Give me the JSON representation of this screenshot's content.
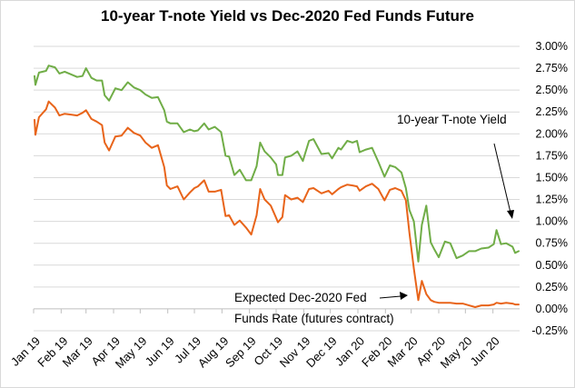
{
  "chart_data": {
    "type": "line",
    "title": "10-year T-note Yield vs Dec-2020 Fed Funds Future",
    "x_tick_labels": [
      "Jan 19",
      "Feb 19",
      "Mar 19",
      "Apr 19",
      "May 19",
      "Jun 19",
      "Jul 19",
      "Aug 19",
      "Sep 19",
      "Oct 19",
      "Nov 19",
      "Dec 19",
      "Jan 20",
      "Feb 20",
      "Mar 20",
      "Apr 20",
      "May 20",
      "Jun 20"
    ],
    "y_tick_labels": [
      "-0.25%",
      "0.00%",
      "0.25%",
      "0.50%",
      "0.75%",
      "1.00%",
      "1.25%",
      "1.50%",
      "1.75%",
      "2.00%",
      "2.25%",
      "2.50%",
      "2.75%",
      "3.00%"
    ],
    "ylim": [
      -0.25,
      3.0
    ],
    "grid": "horizontal",
    "series": [
      {
        "name": "10-year T-note Yield",
        "color": "#70ad47",
        "points": [
          [
            "2019-01-02",
            2.66
          ],
          [
            "2019-01-03",
            2.56
          ],
          [
            "2019-01-07",
            2.7
          ],
          [
            "2019-01-15",
            2.72
          ],
          [
            "2019-01-18",
            2.78
          ],
          [
            "2019-01-25",
            2.76
          ],
          [
            "2019-01-30",
            2.69
          ],
          [
            "2019-02-05",
            2.71
          ],
          [
            "2019-02-12",
            2.68
          ],
          [
            "2019-02-19",
            2.65
          ],
          [
            "2019-02-25",
            2.66
          ],
          [
            "2019-03-01",
            2.75
          ],
          [
            "2019-03-07",
            2.64
          ],
          [
            "2019-03-13",
            2.61
          ],
          [
            "2019-03-19",
            2.61
          ],
          [
            "2019-03-22",
            2.44
          ],
          [
            "2019-03-27",
            2.38
          ],
          [
            "2019-04-03",
            2.52
          ],
          [
            "2019-04-10",
            2.5
          ],
          [
            "2019-04-17",
            2.59
          ],
          [
            "2019-04-24",
            2.53
          ],
          [
            "2019-05-01",
            2.5
          ],
          [
            "2019-05-07",
            2.45
          ],
          [
            "2019-05-14",
            2.41
          ],
          [
            "2019-05-21",
            2.42
          ],
          [
            "2019-05-28",
            2.27
          ],
          [
            "2019-05-31",
            2.14
          ],
          [
            "2019-06-04",
            2.12
          ],
          [
            "2019-06-12",
            2.12
          ],
          [
            "2019-06-19",
            2.02
          ],
          [
            "2019-06-26",
            2.05
          ],
          [
            "2019-07-01",
            2.03
          ],
          [
            "2019-07-05",
            2.04
          ],
          [
            "2019-07-12",
            2.12
          ],
          [
            "2019-07-17",
            2.05
          ],
          [
            "2019-07-24",
            2.08
          ],
          [
            "2019-07-31",
            2.02
          ],
          [
            "2019-08-05",
            1.75
          ],
          [
            "2019-08-09",
            1.74
          ],
          [
            "2019-08-15",
            1.53
          ],
          [
            "2019-08-21",
            1.59
          ],
          [
            "2019-08-28",
            1.47
          ],
          [
            "2019-09-03",
            1.47
          ],
          [
            "2019-09-09",
            1.63
          ],
          [
            "2019-09-13",
            1.9
          ],
          [
            "2019-09-18",
            1.8
          ],
          [
            "2019-09-25",
            1.73
          ],
          [
            "2019-10-01",
            1.65
          ],
          [
            "2019-10-03",
            1.53
          ],
          [
            "2019-10-08",
            1.53
          ],
          [
            "2019-10-11",
            1.73
          ],
          [
            "2019-10-18",
            1.75
          ],
          [
            "2019-10-25",
            1.8
          ],
          [
            "2019-10-31",
            1.69
          ],
          [
            "2019-11-07",
            1.92
          ],
          [
            "2019-11-12",
            1.94
          ],
          [
            "2019-11-21",
            1.77
          ],
          [
            "2019-11-29",
            1.78
          ],
          [
            "2019-12-03",
            1.72
          ],
          [
            "2019-12-10",
            1.84
          ],
          [
            "2019-12-13",
            1.82
          ],
          [
            "2019-12-20",
            1.92
          ],
          [
            "2019-12-26",
            1.9
          ],
          [
            "2019-12-31",
            1.92
          ],
          [
            "2020-01-03",
            1.79
          ],
          [
            "2020-01-10",
            1.82
          ],
          [
            "2020-01-17",
            1.84
          ],
          [
            "2020-01-24",
            1.68
          ],
          [
            "2020-01-31",
            1.51
          ],
          [
            "2020-02-06",
            1.64
          ],
          [
            "2020-02-12",
            1.62
          ],
          [
            "2020-02-19",
            1.56
          ],
          [
            "2020-02-24",
            1.38
          ],
          [
            "2020-02-28",
            1.13
          ],
          [
            "2020-03-04",
            1.0
          ],
          [
            "2020-03-09",
            0.54
          ],
          [
            "2020-03-13",
            0.96
          ],
          [
            "2020-03-18",
            1.18
          ],
          [
            "2020-03-23",
            0.76
          ],
          [
            "2020-03-27",
            0.68
          ],
          [
            "2020-04-01",
            0.59
          ],
          [
            "2020-04-08",
            0.77
          ],
          [
            "2020-04-14",
            0.75
          ],
          [
            "2020-04-21",
            0.58
          ],
          [
            "2020-04-28",
            0.61
          ],
          [
            "2020-05-05",
            0.66
          ],
          [
            "2020-05-12",
            0.66
          ],
          [
            "2020-05-19",
            0.69
          ],
          [
            "2020-05-27",
            0.7
          ],
          [
            "2020-06-02",
            0.74
          ],
          [
            "2020-06-05",
            0.9
          ],
          [
            "2020-06-10",
            0.74
          ],
          [
            "2020-06-16",
            0.75
          ],
          [
            "2020-06-23",
            0.71
          ],
          [
            "2020-06-26",
            0.64
          ],
          [
            "2020-06-30",
            0.66
          ]
        ]
      },
      {
        "name": "Expected Dec-2020 Fed Funds Rate (futures contract)",
        "color": "#e8641a",
        "points": [
          [
            "2019-01-02",
            2.16
          ],
          [
            "2019-01-03",
            1.99
          ],
          [
            "2019-01-07",
            2.19
          ],
          [
            "2019-01-15",
            2.28
          ],
          [
            "2019-01-18",
            2.37
          ],
          [
            "2019-01-25",
            2.3
          ],
          [
            "2019-01-30",
            2.21
          ],
          [
            "2019-02-05",
            2.23
          ],
          [
            "2019-02-12",
            2.22
          ],
          [
            "2019-02-19",
            2.21
          ],
          [
            "2019-02-25",
            2.24
          ],
          [
            "2019-03-01",
            2.27
          ],
          [
            "2019-03-07",
            2.17
          ],
          [
            "2019-03-13",
            2.14
          ],
          [
            "2019-03-19",
            2.1
          ],
          [
            "2019-03-22",
            1.9
          ],
          [
            "2019-03-27",
            1.81
          ],
          [
            "2019-04-03",
            1.97
          ],
          [
            "2019-04-10",
            1.98
          ],
          [
            "2019-04-17",
            2.07
          ],
          [
            "2019-04-24",
            2.01
          ],
          [
            "2019-05-01",
            1.98
          ],
          [
            "2019-05-07",
            1.9
          ],
          [
            "2019-05-14",
            1.84
          ],
          [
            "2019-05-21",
            1.87
          ],
          [
            "2019-05-28",
            1.62
          ],
          [
            "2019-05-31",
            1.41
          ],
          [
            "2019-06-04",
            1.37
          ],
          [
            "2019-06-12",
            1.4
          ],
          [
            "2019-06-19",
            1.25
          ],
          [
            "2019-06-26",
            1.33
          ],
          [
            "2019-07-01",
            1.38
          ],
          [
            "2019-07-05",
            1.4
          ],
          [
            "2019-07-12",
            1.47
          ],
          [
            "2019-07-17",
            1.34
          ],
          [
            "2019-07-24",
            1.34
          ],
          [
            "2019-07-31",
            1.36
          ],
          [
            "2019-08-05",
            1.06
          ],
          [
            "2019-08-09",
            1.07
          ],
          [
            "2019-08-15",
            0.96
          ],
          [
            "2019-08-21",
            1.01
          ],
          [
            "2019-08-28",
            0.93
          ],
          [
            "2019-09-03",
            0.85
          ],
          [
            "2019-09-09",
            1.07
          ],
          [
            "2019-09-13",
            1.37
          ],
          [
            "2019-09-18",
            1.25
          ],
          [
            "2019-09-25",
            1.18
          ],
          [
            "2019-10-01",
            1.04
          ],
          [
            "2019-10-03",
            0.99
          ],
          [
            "2019-10-08",
            1.05
          ],
          [
            "2019-10-11",
            1.3
          ],
          [
            "2019-10-18",
            1.25
          ],
          [
            "2019-10-25",
            1.27
          ],
          [
            "2019-10-31",
            1.22
          ],
          [
            "2019-11-07",
            1.37
          ],
          [
            "2019-11-12",
            1.38
          ],
          [
            "2019-11-21",
            1.32
          ],
          [
            "2019-11-29",
            1.35
          ],
          [
            "2019-12-03",
            1.31
          ],
          [
            "2019-12-10",
            1.37
          ],
          [
            "2019-12-13",
            1.39
          ],
          [
            "2019-12-20",
            1.42
          ],
          [
            "2019-12-26",
            1.41
          ],
          [
            "2019-12-31",
            1.4
          ],
          [
            "2020-01-03",
            1.35
          ],
          [
            "2020-01-10",
            1.4
          ],
          [
            "2020-01-17",
            1.43
          ],
          [
            "2020-01-24",
            1.37
          ],
          [
            "2020-01-31",
            1.24
          ],
          [
            "2020-02-06",
            1.36
          ],
          [
            "2020-02-12",
            1.38
          ],
          [
            "2020-02-19",
            1.35
          ],
          [
            "2020-02-24",
            1.24
          ],
          [
            "2020-02-28",
            0.87
          ],
          [
            "2020-03-04",
            0.46
          ],
          [
            "2020-03-09",
            0.1
          ],
          [
            "2020-03-13",
            0.32
          ],
          [
            "2020-03-18",
            0.17
          ],
          [
            "2020-03-23",
            0.1
          ],
          [
            "2020-03-27",
            0.08
          ],
          [
            "2020-04-01",
            0.07
          ],
          [
            "2020-04-08",
            0.07
          ],
          [
            "2020-04-14",
            0.07
          ],
          [
            "2020-04-21",
            0.06
          ],
          [
            "2020-04-28",
            0.06
          ],
          [
            "2020-05-05",
            0.04
          ],
          [
            "2020-05-12",
            0.02
          ],
          [
            "2020-05-19",
            0.04
          ],
          [
            "2020-05-27",
            0.04
          ],
          [
            "2020-06-02",
            0.05
          ],
          [
            "2020-06-05",
            0.07
          ],
          [
            "2020-06-10",
            0.06
          ],
          [
            "2020-06-16",
            0.07
          ],
          [
            "2020-06-23",
            0.06
          ],
          [
            "2020-06-26",
            0.05
          ],
          [
            "2020-06-30",
            0.05
          ]
        ]
      }
    ],
    "annotations": [
      {
        "text": "10-year T-note Yield",
        "points_to": "10-year T-note Yield"
      },
      {
        "lines": [
          "Expected Dec-2020 Fed",
          "Funds Rate (futures contract)"
        ],
        "points_to": "Expected Dec-2020 Fed Funds Rate (futures contract)"
      }
    ]
  }
}
